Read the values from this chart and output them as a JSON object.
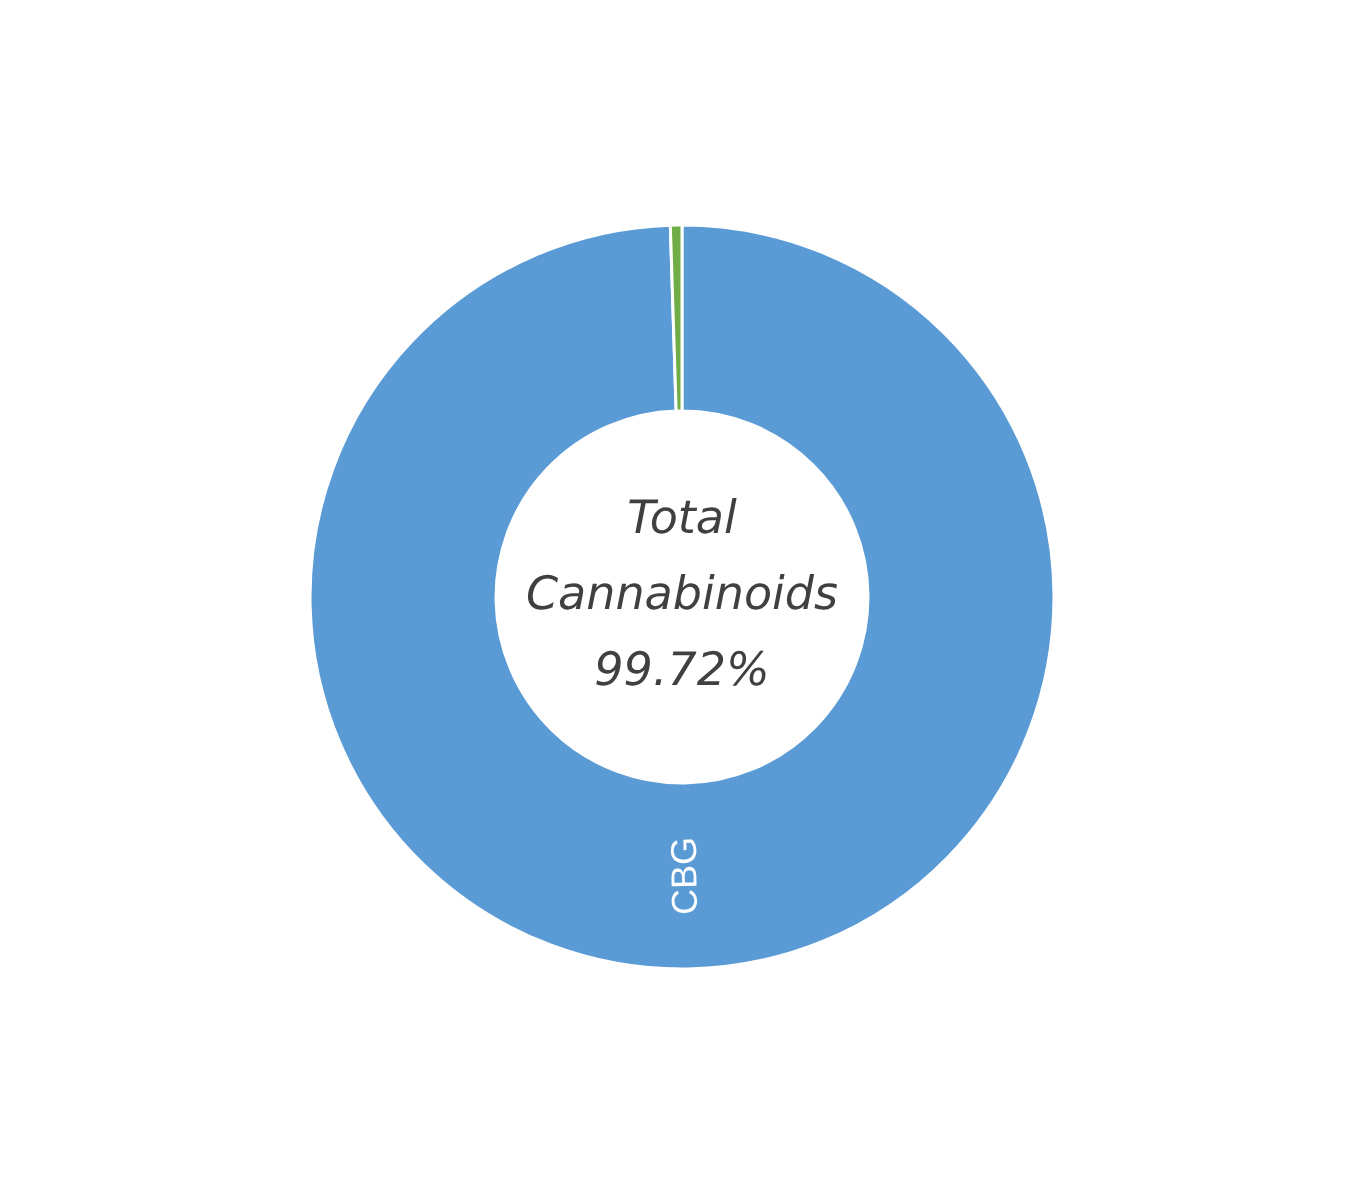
{
  "chart_data": {
    "type": "donut",
    "categories": [
      "CBG",
      null
    ],
    "values": [
      99.5,
      0.5
    ],
    "colors": [
      "#5b9bd5",
      "#70ad47"
    ],
    "annotations": [
      "Total\nCannabinoids\n99.72%"
    ],
    "legend": false
  }
}
